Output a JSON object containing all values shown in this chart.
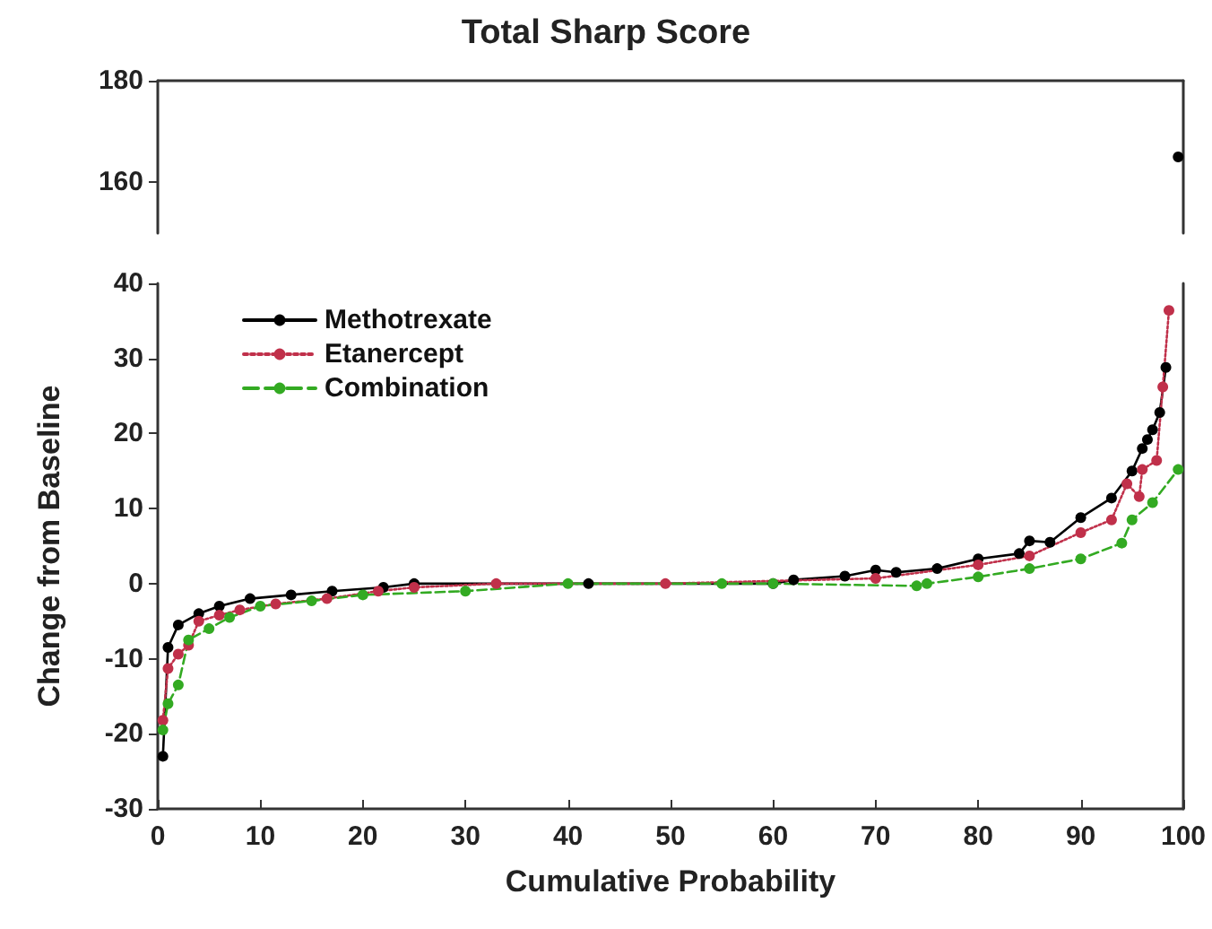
{
  "chart_data": [
    {
      "type": "line",
      "title": "Total Sharp Score",
      "xlim": [
        0,
        100
      ],
      "ylim": [
        150,
        180
      ],
      "yticks": [
        160,
        180
      ],
      "tick_labels": "y",
      "grid": false,
      "marker": "circle",
      "series": [
        {
          "color": "#000000",
          "line_style": "solid",
          "x": [
            99.5
          ],
          "values": [
            165
          ]
        }
      ]
    },
    {
      "type": "line",
      "xlabel": "Cumulative Probability",
      "ylabel": "Change from Baseline",
      "xlim": [
        0,
        100
      ],
      "ylim": [
        -30,
        40
      ],
      "xticks": [
        0,
        10,
        20,
        30,
        40,
        50,
        60,
        70,
        80,
        90,
        100
      ],
      "yticks": [
        -30,
        -20,
        -10,
        0,
        10,
        20,
        30,
        40
      ],
      "grid": false,
      "legend": "top left",
      "marker": "circle",
      "series": [
        {
          "name": "Methotrexate",
          "color": "#000000",
          "line_style": "solid",
          "x": [
            0.5,
            1,
            2,
            4,
            6,
            9,
            13,
            17,
            22,
            25,
            42,
            60,
            62,
            67,
            70,
            72,
            76,
            80,
            84,
            85,
            87,
            90,
            93,
            95,
            96,
            96.5,
            97,
            97.7,
            98.3
          ],
          "values": [
            -23,
            -8.5,
            -5.5,
            -4,
            -3,
            -2,
            -1.5,
            -1,
            -0.5,
            0,
            0,
            0,
            0.5,
            1,
            1.8,
            1.5,
            2,
            3.3,
            4,
            5.7,
            5.5,
            8.8,
            11.4,
            15,
            18,
            19.2,
            20.5,
            22.8,
            28.8
          ]
        },
        {
          "name": "Etanercept",
          "color": "#c0304a",
          "line_style": "dotted",
          "x": [
            0.5,
            1,
            2,
            3,
            4,
            6,
            8,
            11.5,
            16.5,
            21.5,
            25,
            33,
            49.5,
            70,
            80,
            85,
            90,
            93,
            94.5,
            95.7,
            96,
            97.4,
            98,
            98.6
          ],
          "values": [
            -18.2,
            -11.3,
            -9.4,
            -8.2,
            -5,
            -4.2,
            -3.5,
            -2.7,
            -2,
            -1,
            -0.5,
            0,
            0,
            0.7,
            2.5,
            3.7,
            6.8,
            8.5,
            13.3,
            11.6,
            15.2,
            16.4,
            26.2,
            36.4
          ]
        },
        {
          "name": "Combination",
          "color": "#33aa22",
          "line_style": "dashed",
          "x": [
            0.5,
            1,
            2,
            3,
            5,
            7,
            10,
            15,
            20,
            30,
            40,
            55,
            60,
            74,
            75,
            80,
            85,
            90,
            94,
            95,
            97,
            99.5
          ],
          "values": [
            -19.5,
            -16,
            -13.5,
            -7.5,
            -6,
            -4.5,
            -3,
            -2.3,
            -1.5,
            -1,
            0,
            0,
            0,
            -0.3,
            0,
            0.9,
            2,
            3.3,
            5.4,
            8.5,
            10.8,
            15.2
          ]
        }
      ]
    }
  ]
}
